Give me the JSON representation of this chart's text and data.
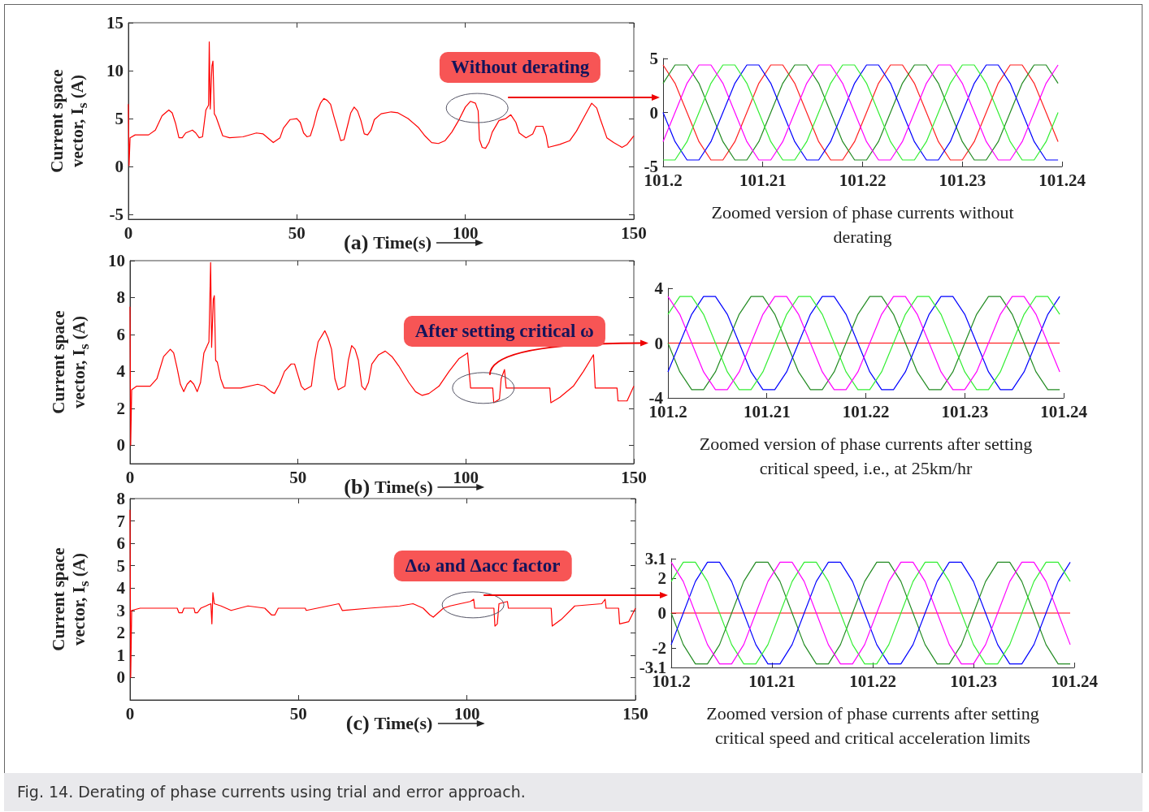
{
  "chart_data": [
    {
      "type": "line",
      "xlabel": "Time(s)",
      "ylabel": "Current space vector, I$_{s}$ (A)",
      "xlim": [
        0,
        150
      ],
      "xticks": [
        0,
        50,
        100,
        150
      ],
      "ylim": [
        -5.5,
        15
      ],
      "yticks": [
        -5,
        0,
        5,
        10,
        15
      ],
      "x": [
        0,
        0.2,
        0.5,
        2,
        6,
        8,
        10,
        12,
        13,
        14,
        15,
        16,
        17,
        19,
        20,
        21,
        22,
        23,
        23.8,
        24,
        24.3,
        24.8,
        25.1,
        25.5,
        26,
        27,
        28,
        30,
        34,
        38,
        40,
        42,
        43,
        45,
        46,
        48,
        50,
        51,
        52,
        53,
        54,
        55,
        56,
        57,
        58,
        59,
        60,
        61,
        62,
        63,
        64,
        65,
        66,
        67,
        68,
        69,
        70,
        71,
        72,
        73,
        75,
        78,
        80,
        83,
        86,
        88,
        90,
        92,
        94,
        96,
        98,
        100,
        101.5,
        103,
        103.8,
        104.2,
        105,
        106,
        107,
        108,
        110,
        112,
        113.5,
        115,
        116,
        118,
        120,
        121,
        123,
        124,
        124.6,
        128,
        131,
        133,
        135,
        137,
        137.5,
        139,
        140,
        142,
        144,
        146.5,
        148,
        150
      ],
      "series": [
        {
          "color": "#ff0000",
          "values": [
            6.5,
            0.1,
            3.0,
            3.3,
            3.3,
            3.8,
            5.3,
            5.9,
            5.6,
            4.5,
            3.0,
            3.0,
            3.5,
            3.8,
            3.5,
            3.0,
            3.1,
            5.9,
            6.4,
            13.0,
            6.0,
            10.5,
            11.0,
            5.5,
            5.2,
            4.2,
            3.2,
            3.0,
            3.1,
            3.5,
            3.4,
            2.8,
            2.5,
            3.0,
            4.0,
            4.9,
            5.0,
            4.6,
            3.5,
            3.1,
            3.2,
            4.3,
            5.7,
            6.6,
            7.1,
            6.9,
            6.5,
            5.2,
            4.0,
            2.7,
            2.8,
            4.2,
            5.6,
            6.2,
            5.8,
            4.8,
            3.4,
            3.3,
            3.8,
            4.9,
            5.5,
            5.7,
            5.6,
            5.0,
            4.1,
            3.2,
            2.5,
            2.4,
            2.7,
            3.6,
            4.8,
            6.2,
            6.8,
            6.6,
            5.8,
            2.8,
            2.0,
            1.9,
            2.5,
            3.6,
            4.8,
            5.0,
            5.4,
            4.6,
            3.5,
            3.0,
            3.4,
            4.2,
            4.2,
            3.2,
            2.0,
            2.3,
            2.7,
            3.7,
            5.0,
            6.3,
            6.6,
            6.1,
            5.0,
            3.0,
            2.5,
            2.0,
            2.3,
            3.2
          ]
        }
      ],
      "annotations": [
        "(a)",
        {
          "text": "Without derating",
          "x": 103.5,
          "y": 6.1
        },
        "Fig. 14. Derating of phase currents using trial and error approach."
      ]
    },
    {
      "type": "line",
      "xlim": [
        101.2,
        101.24
      ],
      "xticks": [
        101.2,
        101.21,
        101.22,
        101.23,
        101.24
      ],
      "ylim": [
        -5,
        5
      ],
      "yticks": [
        -5,
        0,
        5
      ],
      "x": [
        101.2,
        101.2012,
        101.2024,
        101.2036,
        101.2048,
        101.206,
        101.2072,
        101.2084,
        101.2096,
        101.2108,
        101.212,
        101.2132,
        101.2144,
        101.2156,
        101.2168,
        101.218,
        101.2192,
        101.2204,
        101.2216,
        101.2228,
        101.224,
        101.2252,
        101.2264,
        101.2276,
        101.2288,
        101.23,
        101.2312,
        101.2324,
        101.2336,
        101.2348,
        101.236,
        101.2372,
        101.2384,
        101.2396
      ],
      "series": [
        {
          "color": "#ff2020",
          "values": [
            4.4,
            2.7,
            0,
            -2.7,
            -4.4,
            -4.4,
            -2.7,
            0,
            2.7,
            4.4,
            4.4,
            2.7,
            0,
            -2.7,
            -4.4,
            -4.4,
            -2.7,
            0,
            2.7,
            4.4,
            4.4,
            2.7,
            0,
            -2.7,
            -4.4,
            -4.4,
            -2.7,
            0,
            2.7,
            4.4,
            4.4,
            2.7,
            0,
            -2.7
          ]
        },
        {
          "color": "#228b22",
          "values": [
            2.7,
            4.4,
            4.4,
            2.7,
            0,
            -2.7,
            -4.4,
            -4.4,
            -2.7,
            0,
            2.7,
            4.4,
            4.4,
            2.7,
            0,
            -2.7,
            -4.4,
            -4.4,
            -2.7,
            0,
            2.7,
            4.4,
            4.4,
            2.7,
            0,
            -2.7,
            -4.4,
            -4.4,
            -2.7,
            0,
            2.7,
            4.4,
            4.4,
            2.7
          ]
        },
        {
          "color": "#0000ff",
          "values": [
            0,
            -2.7,
            -4.4,
            -4.4,
            -2.7,
            0,
            2.7,
            4.4,
            4.4,
            2.7,
            0,
            -2.7,
            -4.4,
            -4.4,
            -2.7,
            0,
            2.7,
            4.4,
            4.4,
            2.7,
            0,
            -2.7,
            -4.4,
            -4.4,
            -2.7,
            0,
            2.7,
            4.4,
            4.4,
            2.7,
            0,
            -2.7,
            -4.4,
            -4.4
          ]
        },
        {
          "color": "#33ee33",
          "values": [
            -4.4,
            -4.4,
            -2.7,
            0,
            2.7,
            4.4,
            4.4,
            2.7,
            0,
            -2.7,
            -4.4,
            -4.4,
            -2.7,
            0,
            2.7,
            4.4,
            4.4,
            2.7,
            0,
            -2.7,
            -4.4,
            -4.4,
            -2.7,
            0,
            2.7,
            4.4,
            4.4,
            2.7,
            0,
            -2.7,
            -4.4,
            -4.4,
            -2.7,
            0
          ]
        },
        {
          "color": "#ff00ff",
          "values": [
            -2.7,
            0,
            2.7,
            4.4,
            4.4,
            2.7,
            0,
            -2.7,
            -4.4,
            -4.4,
            -2.7,
            0,
            2.7,
            4.4,
            4.4,
            2.7,
            0,
            -2.7,
            -4.4,
            -4.4,
            -2.7,
            0,
            2.7,
            4.4,
            4.4,
            2.7,
            0,
            -2.7,
            -4.4,
            -4.4,
            -2.7,
            0,
            2.7,
            4.4
          ]
        }
      ],
      "annotations": [
        "Zoomed version of phase currents without derating"
      ]
    },
    {
      "type": "line",
      "xlabel": "Time(s)",
      "ylabel": "Current space vector, I$_{s}$ (A)",
      "xlim": [
        0,
        150
      ],
      "xticks": [
        0,
        50,
        100,
        150
      ],
      "ylim": [
        -1,
        10
      ],
      "yticks": [
        0,
        2,
        4,
        6,
        8,
        10
      ],
      "x": [
        0,
        0.2,
        0.5,
        2,
        6,
        8,
        10,
        12,
        13,
        14,
        15,
        16,
        17,
        18,
        19,
        20,
        21,
        22,
        23.5,
        24,
        24.3,
        24.8,
        25.1,
        25.5,
        26,
        27,
        28,
        33,
        38,
        40,
        42,
        43,
        44.5,
        46,
        48,
        49,
        50,
        51,
        52,
        54,
        55,
        56,
        58,
        59,
        60,
        61,
        62,
        64,
        65,
        66,
        67,
        68,
        69,
        70,
        71,
        72,
        74,
        76,
        78,
        80,
        83,
        85,
        87,
        89,
        92,
        95,
        98,
        100.5,
        101.4,
        108,
        108.3,
        110,
        110.5,
        111.5,
        112,
        125,
        125.3,
        128,
        132,
        135,
        137,
        138,
        138.5,
        145,
        145.3,
        148,
        150
      ],
      "series": [
        {
          "color": "#ff0000",
          "values": [
            7.5,
            0,
            3.0,
            3.2,
            3.2,
            3.6,
            4.8,
            5.2,
            5.0,
            4.2,
            3.3,
            2.9,
            3.3,
            3.5,
            3.3,
            2.9,
            3.4,
            5.0,
            5.6,
            9.9,
            5.3,
            7.9,
            8.1,
            4.6,
            4.5,
            3.6,
            3.1,
            3.1,
            3.3,
            3.2,
            2.9,
            2.8,
            3.3,
            4.0,
            4.4,
            4.4,
            3.8,
            3.2,
            3.0,
            3.2,
            4.6,
            5.6,
            6.2,
            5.8,
            5.2,
            3.6,
            3.0,
            3.2,
            4.6,
            5.4,
            5.2,
            4.6,
            3.2,
            3.0,
            3.4,
            4.4,
            4.9,
            5.1,
            4.8,
            4.3,
            3.4,
            2.9,
            2.7,
            2.8,
            3.2,
            4.0,
            4.7,
            5.0,
            3.1,
            3.1,
            2.3,
            2.5,
            3.6,
            4.1,
            3.1,
            3.1,
            2.3,
            2.6,
            3.2,
            4.0,
            4.6,
            4.9,
            3.1,
            3.1,
            2.4,
            2.4,
            3.2
          ]
        }
      ],
      "annotations": [
        "(b)",
        {
          "text": "After setting critical ω",
          "x": 105.2,
          "y": 3.1
        }
      ]
    },
    {
      "type": "line",
      "xlim": [
        101.2,
        101.24
      ],
      "xticks": [
        101.2,
        101.21,
        101.22,
        101.23,
        101.24
      ],
      "ylim": [
        -4,
        4
      ],
      "yticks": [
        -4,
        0,
        4
      ],
      "x": [
        101.2,
        101.2012,
        101.2024,
        101.2036,
        101.2048,
        101.206,
        101.2072,
        101.2084,
        101.2096,
        101.2108,
        101.212,
        101.2132,
        101.2144,
        101.2156,
        101.2168,
        101.218,
        101.2192,
        101.2204,
        101.2216,
        101.2228,
        101.224,
        101.2252,
        101.2264,
        101.2276,
        101.2288,
        101.23,
        101.2312,
        101.2324,
        101.2336,
        101.2348,
        101.236,
        101.2372,
        101.2384,
        101.2396
      ],
      "series": [
        {
          "color": "#ff0000",
          "values": [
            0,
            0,
            0,
            0,
            0,
            0,
            0,
            0,
            0,
            0,
            0,
            0,
            0,
            0,
            0,
            0,
            0,
            0,
            0,
            0,
            0,
            0,
            0,
            0,
            0,
            0,
            0,
            0,
            0,
            0,
            0,
            0,
            0,
            0
          ]
        },
        {
          "color": "#228b22",
          "values": [
            0,
            -2.1,
            -3.4,
            -3.4,
            -2.1,
            0,
            2.1,
            3.4,
            3.4,
            2.1,
            0,
            -2.1,
            -3.4,
            -3.4,
            -2.1,
            0,
            2.1,
            3.4,
            3.4,
            2.1,
            0,
            -2.1,
            -3.4,
            -3.4,
            -2.1,
            0,
            2.1,
            3.4,
            3.4,
            2.1,
            0,
            -2.1,
            -3.4,
            -3.4
          ]
        },
        {
          "color": "#0000ff",
          "values": [
            -2.1,
            0,
            2.1,
            3.4,
            3.4,
            2.1,
            0,
            -2.1,
            -3.4,
            -3.4,
            -2.1,
            0,
            2.1,
            3.4,
            3.4,
            2.1,
            0,
            -2.1,
            -3.4,
            -3.4,
            -2.1,
            0,
            2.1,
            3.4,
            3.4,
            2.1,
            0,
            -2.1,
            -3.4,
            -3.4,
            -2.1,
            0,
            2.1,
            3.4
          ]
        },
        {
          "color": "#33ee33",
          "values": [
            2.1,
            3.4,
            3.4,
            2.1,
            0,
            -2.1,
            -3.4,
            -3.4,
            -2.1,
            0,
            2.1,
            3.4,
            3.4,
            2.1,
            0,
            -2.1,
            -3.4,
            -3.4,
            -2.1,
            0,
            2.1,
            3.4,
            3.4,
            2.1,
            0,
            -2.1,
            -3.4,
            -3.4,
            -2.1,
            0,
            2.1,
            3.4,
            3.4,
            2.1
          ]
        },
        {
          "color": "#ff00ff",
          "values": [
            3.4,
            2.1,
            0,
            -2.1,
            -3.4,
            -3.4,
            -2.1,
            0,
            2.1,
            3.4,
            3.4,
            2.1,
            0,
            -2.1,
            -3.4,
            -3.4,
            -2.1,
            0,
            2.1,
            3.4,
            3.4,
            2.1,
            0,
            -2.1,
            -3.4,
            -3.4,
            -2.1,
            0,
            2.1,
            3.4,
            3.4,
            2.1,
            0,
            -2.1
          ]
        }
      ],
      "annotations": [
        "Zoomed version of phase currents after setting critical speed, i.e., at 25km/hr"
      ]
    },
    {
      "type": "line",
      "xlabel": "Time(s)",
      "ylabel": "Current space vector, I$_{s}$ (A)",
      "xlim": [
        0,
        150
      ],
      "xticks": [
        0,
        50,
        100,
        150
      ],
      "ylim": [
        -1,
        8
      ],
      "yticks": [
        0,
        1,
        2,
        3,
        4,
        5,
        6,
        7,
        8
      ],
      "x": [
        0,
        0.2,
        0.5,
        3,
        14,
        14.5,
        15.5,
        16,
        19,
        19.3,
        20,
        21,
        24,
        24.3,
        24.6,
        25,
        27,
        30,
        35,
        40,
        42,
        43,
        44,
        52,
        52.3,
        62,
        63,
        71,
        80,
        84,
        87,
        89,
        90,
        93,
        95,
        98,
        101,
        102,
        102.3,
        108,
        108.3,
        109,
        109.5,
        112,
        112.3,
        125,
        125.3,
        128,
        132,
        140,
        141,
        141.3,
        145,
        145.3,
        148,
        150
      ],
      "series": [
        {
          "color": "#ff0000",
          "values": [
            7.5,
            0,
            3.0,
            3.1,
            3.1,
            2.9,
            2.9,
            3.1,
            3.1,
            2.9,
            2.9,
            3.1,
            3.3,
            2.4,
            3.8,
            3.3,
            3.2,
            3.0,
            3.2,
            3.1,
            2.8,
            2.8,
            3.1,
            3.1,
            3.0,
            3.3,
            3.0,
            3.1,
            3.2,
            3.3,
            3.1,
            2.8,
            2.7,
            3.1,
            3.2,
            3.3,
            3.4,
            3.5,
            3.1,
            3.1,
            2.3,
            2.4,
            3.3,
            3.4,
            3.1,
            3.1,
            2.3,
            2.6,
            3.2,
            3.3,
            3.5,
            3.1,
            3.1,
            2.4,
            2.5,
            3.1
          ]
        }
      ],
      "annotations": [
        "(c)",
        {
          "text": "Δω and Δacc factor",
          "x": 101.8,
          "y": 3.25
        }
      ]
    },
    {
      "type": "line",
      "xlim": [
        101.2,
        101.24
      ],
      "xticks": [
        101.2,
        101.21,
        101.22,
        101.23,
        101.24
      ],
      "ylim": [
        -3.1,
        3.1
      ],
      "yticks": [
        -3.1,
        -2,
        0,
        2,
        3.1
      ],
      "x": [
        101.2,
        101.2012,
        101.2024,
        101.2036,
        101.2048,
        101.206,
        101.2072,
        101.2084,
        101.2096,
        101.2108,
        101.212,
        101.2132,
        101.2144,
        101.2156,
        101.2168,
        101.218,
        101.2192,
        101.2204,
        101.2216,
        101.2228,
        101.224,
        101.2252,
        101.2264,
        101.2276,
        101.2288,
        101.23,
        101.2312,
        101.2324,
        101.2336,
        101.2348,
        101.236,
        101.2372,
        101.2384,
        101.2396
      ],
      "series": [
        {
          "color": "#ff0000",
          "values": [
            0,
            0,
            0,
            0,
            0,
            0,
            0,
            0,
            0,
            0,
            0,
            0,
            0,
            0,
            0,
            0,
            0,
            0,
            0,
            0,
            0,
            0,
            0,
            0,
            0,
            0,
            0,
            0,
            0,
            0,
            0,
            0,
            0,
            0
          ]
        },
        {
          "color": "#228b22",
          "values": [
            0,
            -1.8,
            -2.9,
            -2.9,
            -1.8,
            0,
            1.8,
            2.9,
            2.9,
            1.8,
            0,
            -1.8,
            -2.9,
            -2.9,
            -1.8,
            0,
            1.8,
            2.9,
            2.9,
            1.8,
            0,
            -1.8,
            -2.9,
            -2.9,
            -1.8,
            0,
            1.8,
            2.9,
            2.9,
            1.8,
            0,
            -1.8,
            -2.9,
            -2.9
          ]
        },
        {
          "color": "#0000ff",
          "values": [
            -1.8,
            0,
            1.8,
            2.9,
            2.9,
            1.8,
            0,
            -1.8,
            -2.9,
            -2.9,
            -1.8,
            0,
            1.8,
            2.9,
            2.9,
            1.8,
            0,
            -1.8,
            -2.9,
            -2.9,
            -1.8,
            0,
            1.8,
            2.9,
            2.9,
            1.8,
            0,
            -1.8,
            -2.9,
            -2.9,
            -1.8,
            0,
            1.8,
            2.9
          ]
        },
        {
          "color": "#33ee33",
          "values": [
            1.8,
            2.9,
            2.9,
            1.8,
            0,
            -1.8,
            -2.9,
            -2.9,
            -1.8,
            0,
            1.8,
            2.9,
            2.9,
            1.8,
            0,
            -1.8,
            -2.9,
            -2.9,
            -1.8,
            0,
            1.8,
            2.9,
            2.9,
            1.8,
            0,
            -1.8,
            -2.9,
            -2.9,
            -1.8,
            0,
            1.8,
            2.9,
            2.9,
            1.8
          ]
        },
        {
          "color": "#ff00ff",
          "values": [
            2.9,
            1.8,
            0,
            -1.8,
            -2.9,
            -2.9,
            -1.8,
            0,
            1.8,
            2.9,
            2.9,
            1.8,
            0,
            -1.8,
            -2.9,
            -2.9,
            -1.8,
            0,
            1.8,
            2.9,
            2.9,
            1.8,
            0,
            -1.8,
            -2.9,
            -2.9,
            -1.8,
            0,
            1.8,
            2.9,
            2.9,
            1.8,
            0,
            -1.8
          ]
        }
      ],
      "annotations": [
        "Zoomed version of phase currents after setting critical speed and critical acceleration limits"
      ]
    }
  ]
}
